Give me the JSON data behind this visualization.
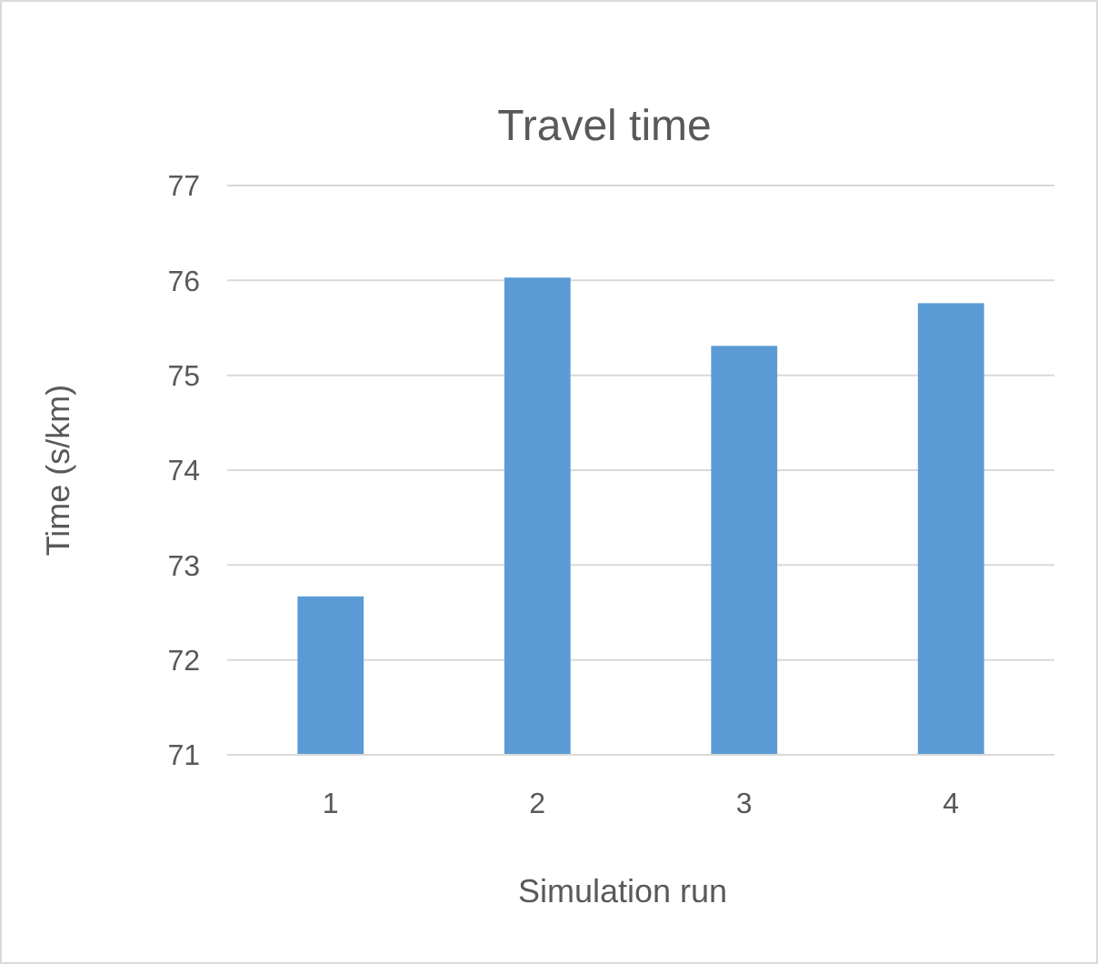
{
  "chart_data": {
    "type": "bar",
    "title": "Travel time",
    "xlabel": "Simulation run",
    "ylabel": "Time (s/km)",
    "categories": [
      "1",
      "2",
      "3",
      "4"
    ],
    "values": [
      72.67,
      76.03,
      75.31,
      75.76
    ],
    "color": "#5b9bd5",
    "ylim": [
      71,
      77
    ],
    "yticks": [
      71,
      72,
      73,
      74,
      75,
      76,
      77
    ],
    "grid": "y"
  }
}
